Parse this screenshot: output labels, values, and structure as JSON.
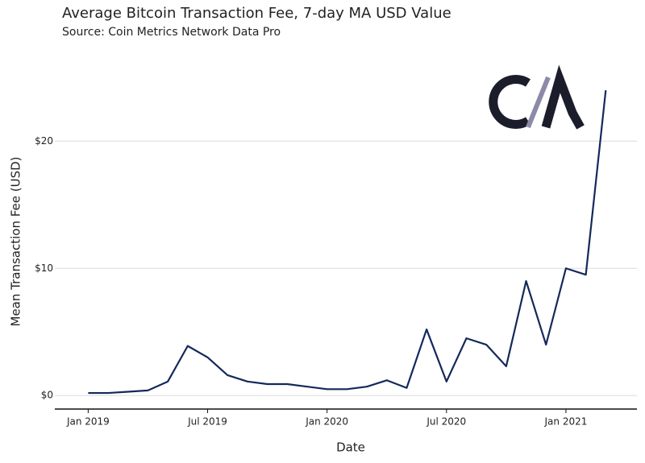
{
  "chart_data": {
    "type": "line",
    "title": "Average Bitcoin Transaction Fee, 7-day MA USD Value",
    "subtitle": "Source: Coin Metrics Network Data Pro",
    "x_label": "Date",
    "y_label": "Mean Transaction Fee (USD)",
    "x": [
      "2019-01",
      "2019-02",
      "2019-03",
      "2019-04",
      "2019-05",
      "2019-06",
      "2019-07",
      "2019-08",
      "2019-09",
      "2019-10",
      "2019-11",
      "2019-12",
      "2020-01",
      "2020-02",
      "2020-03",
      "2020-04",
      "2020-05",
      "2020-06",
      "2020-07",
      "2020-08",
      "2020-09",
      "2020-10",
      "2020-11",
      "2020-12",
      "2021-01",
      "2021-02",
      "2021-03"
    ],
    "series": [
      {
        "name": "Average Transaction Fee",
        "color": "#14295a",
        "values": [
          0.2,
          0.2,
          0.3,
          0.4,
          1.1,
          3.9,
          3.0,
          1.6,
          1.1,
          0.9,
          0.9,
          0.7,
          0.5,
          0.5,
          0.7,
          1.2,
          0.6,
          5.2,
          1.1,
          4.5,
          4.0,
          2.3,
          9.0,
          4.0,
          10.0,
          9.5,
          24.0
        ]
      }
    ],
    "xlim": [
      "2018-11",
      "2021-04"
    ],
    "xticks": [
      {
        "value": "2019-01",
        "label": "Jan 2019"
      },
      {
        "value": "2019-07",
        "label": "Jul 2019"
      },
      {
        "value": "2020-01",
        "label": "Jan 2020"
      },
      {
        "value": "2020-07",
        "label": "Jul 2020"
      },
      {
        "value": "2021-01",
        "label": "Jan 2021"
      }
    ],
    "ylim": [
      -1.1,
      27
    ],
    "yticks": [
      {
        "value": 0,
        "label": "$0"
      },
      {
        "value": 10,
        "label": "$10"
      },
      {
        "value": 20,
        "label": "$20"
      }
    ],
    "grid": true
  }
}
